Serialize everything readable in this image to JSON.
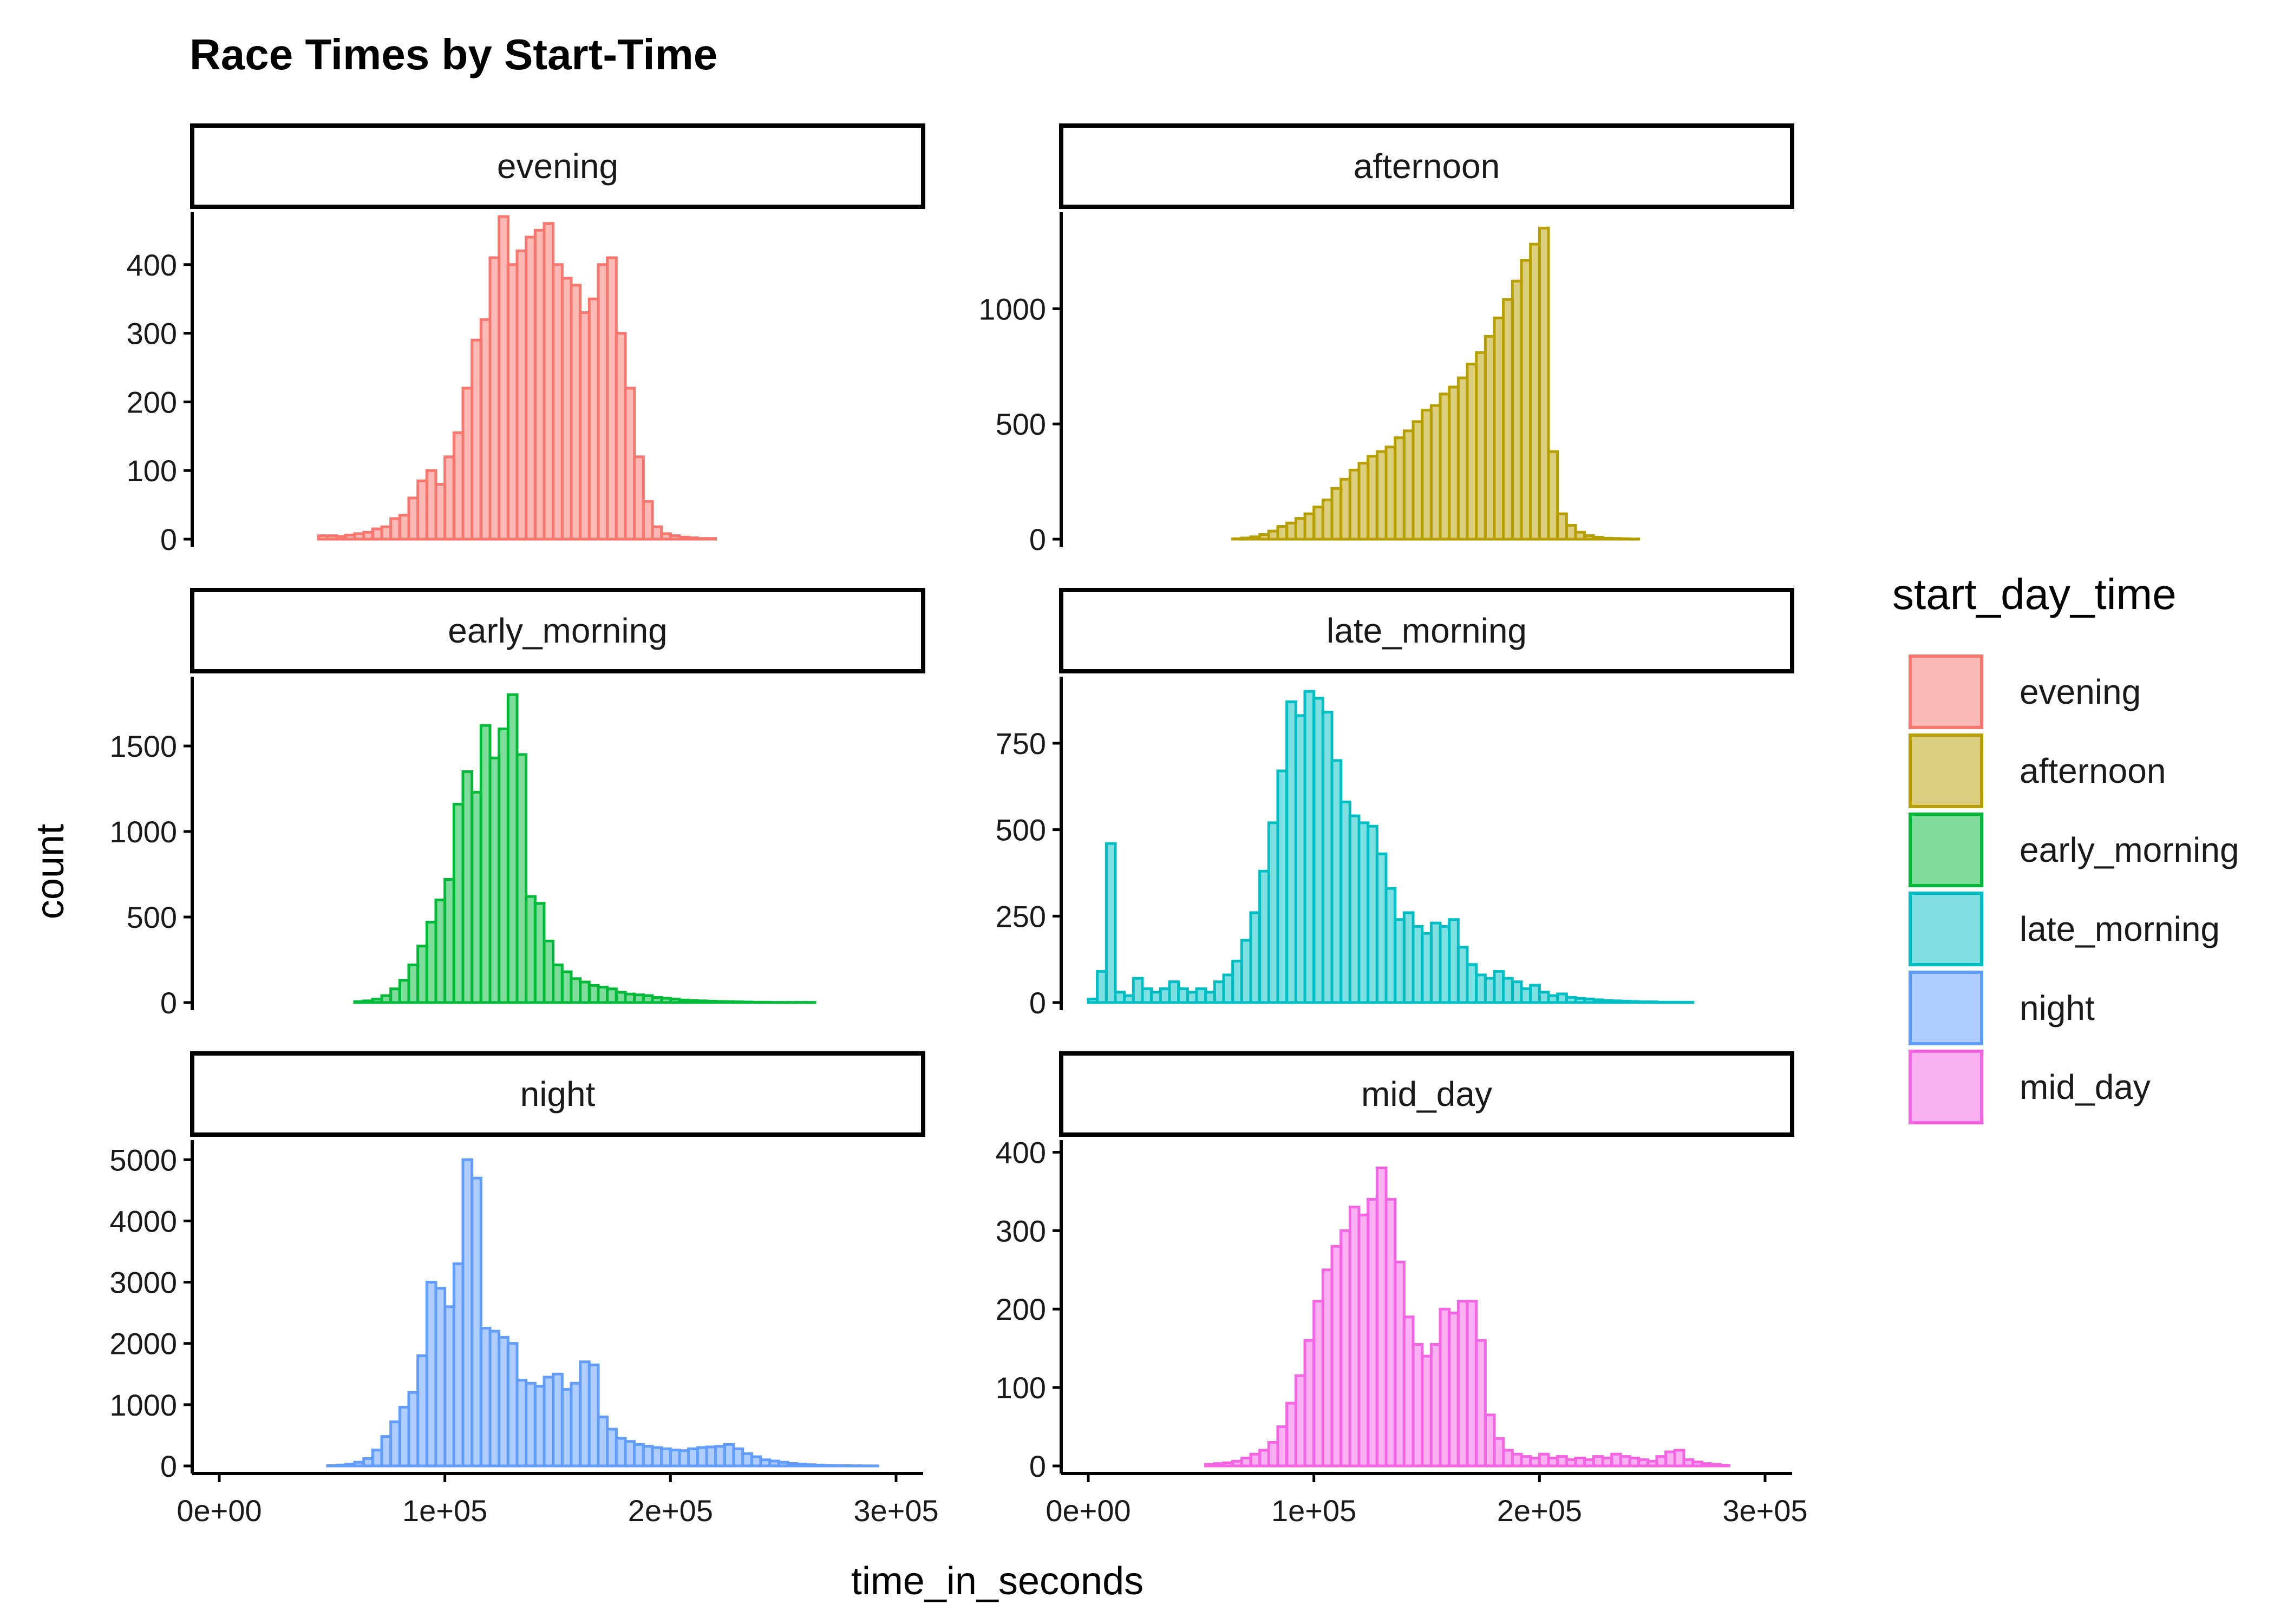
{
  "title": "Race Times by Start-Time",
  "x_axis_title": "time_in_seconds",
  "y_axis_title": "count",
  "legend": {
    "title": "start_day_time",
    "items": [
      {
        "label": "evening",
        "color": "#F8766D"
      },
      {
        "label": "afternoon",
        "color": "#B79F00"
      },
      {
        "label": "early_morning",
        "color": "#00BA38"
      },
      {
        "label": "late_morning",
        "color": "#00BFC4"
      },
      {
        "label": "night",
        "color": "#619CFF"
      },
      {
        "label": "mid_day",
        "color": "#F564E3"
      }
    ]
  },
  "chart_data": {
    "type": "bar",
    "subtype": "faceted-histogram",
    "title": "Race Times by Start-Time",
    "xlabel": "time_in_seconds",
    "ylabel": "count",
    "xlim": [
      -12000,
      312000
    ],
    "x_ticks": [
      0,
      100000,
      200000,
      300000
    ],
    "x_tick_labels": [
      "0e+00",
      "1e+05",
      "2e+05",
      "3e+05"
    ],
    "bin_width": 4000,
    "bin_start": 2000,
    "legend_position": "right",
    "grid": false,
    "facets": [
      {
        "name": "evening",
        "color": "#F8766D",
        "ylim": [
          0,
          470
        ],
        "y_ticks": [
          0,
          100,
          200,
          300,
          400
        ],
        "y_tick_labels": [
          "0",
          "100",
          "200",
          "300",
          "400"
        ],
        "values": [
          0,
          0,
          0,
          0,
          0,
          0,
          0,
          0,
          0,
          0,
          0,
          5,
          5,
          4,
          6,
          8,
          10,
          15,
          18,
          30,
          35,
          60,
          85,
          100,
          80,
          120,
          155,
          220,
          290,
          320,
          410,
          470,
          400,
          420,
          440,
          450,
          460,
          400,
          380,
          370,
          330,
          350,
          400,
          410,
          300,
          220,
          120,
          55,
          18,
          8,
          5,
          3,
          2,
          1,
          1,
          0,
          0,
          0,
          0,
          0,
          0,
          0,
          0,
          0,
          0,
          0,
          0,
          0,
          0,
          0,
          0,
          0,
          0,
          0,
          0
        ],
        "comment_unused": ""
      },
      {
        "name": "afternoon",
        "color": "#B79F00",
        "ylim": [
          0,
          1400
        ],
        "y_ticks": [
          0,
          500,
          1000
        ],
        "y_tick_labels": [
          "0",
          "500",
          "1000"
        ],
        "values": [
          0,
          0,
          0,
          0,
          0,
          0,
          0,
          0,
          0,
          0,
          0,
          0,
          0,
          0,
          0,
          0,
          2,
          5,
          10,
          20,
          35,
          55,
          70,
          90,
          110,
          140,
          170,
          220,
          260,
          300,
          330,
          360,
          380,
          400,
          440,
          470,
          510,
          560,
          580,
          630,
          660,
          700,
          760,
          810,
          880,
          960,
          1040,
          1120,
          1210,
          1280,
          1350,
          380,
          110,
          60,
          30,
          15,
          8,
          4,
          3,
          2,
          1,
          0,
          0,
          0,
          0,
          0,
          0,
          0,
          0,
          0,
          0,
          0,
          0,
          0,
          0
        ]
      },
      {
        "name": "early_morning",
        "color": "#00BA38",
        "ylim": [
          0,
          1880
        ],
        "y_ticks": [
          0,
          500,
          1000,
          1500
        ],
        "y_tick_labels": [
          "0",
          "500",
          "1000",
          "1500"
        ],
        "values": [
          0,
          0,
          0,
          0,
          0,
          0,
          0,
          0,
          0,
          0,
          0,
          0,
          0,
          0,
          0,
          5,
          10,
          20,
          40,
          80,
          130,
          220,
          330,
          470,
          600,
          720,
          1160,
          1350,
          1230,
          1620,
          1430,
          1600,
          1800,
          1450,
          620,
          580,
          360,
          220,
          180,
          140,
          120,
          100,
          90,
          80,
          60,
          50,
          45,
          40,
          30,
          25,
          20,
          15,
          12,
          10,
          8,
          6,
          5,
          4,
          3,
          2,
          2,
          1,
          1,
          1,
          1,
          1,
          0,
          0,
          0,
          0,
          0,
          0,
          0,
          0,
          0
        ]
      },
      {
        "name": "late_morning",
        "color": "#00BFC4",
        "ylim": [
          0,
          930
        ],
        "y_ticks": [
          0,
          250,
          500,
          750
        ],
        "y_tick_labels": [
          "0",
          "250",
          "500",
          "750"
        ],
        "values": [
          10,
          90,
          460,
          30,
          20,
          70,
          40,
          30,
          40,
          60,
          40,
          30,
          40,
          30,
          60,
          80,
          120,
          180,
          260,
          380,
          520,
          670,
          870,
          830,
          900,
          880,
          840,
          700,
          580,
          540,
          520,
          510,
          430,
          330,
          240,
          260,
          220,
          200,
          230,
          220,
          240,
          160,
          110,
          80,
          70,
          90,
          70,
          60,
          40,
          50,
          30,
          20,
          25,
          15,
          12,
          10,
          8,
          6,
          5,
          4,
          3,
          2,
          2,
          1,
          1,
          1,
          1,
          0,
          0,
          0,
          0,
          0,
          0,
          0,
          0
        ]
      },
      {
        "name": "night",
        "color": "#619CFF",
        "ylim": [
          0,
          5250
        ],
        "y_ticks": [
          0,
          1000,
          2000,
          3000,
          4000,
          5000
        ],
        "y_tick_labels": [
          "0",
          "1000",
          "2000",
          "3000",
          "4000",
          "5000"
        ],
        "values": [
          0,
          0,
          0,
          0,
          0,
          0,
          0,
          0,
          0,
          0,
          0,
          0,
          5,
          15,
          30,
          60,
          120,
          260,
          480,
          720,
          960,
          1200,
          1800,
          3000,
          2900,
          2600,
          3300,
          5000,
          4700,
          2250,
          2200,
          2100,
          2000,
          1400,
          1350,
          1300,
          1450,
          1500,
          1250,
          1350,
          1700,
          1650,
          800,
          600,
          450,
          400,
          350,
          320,
          300,
          280,
          260,
          250,
          280,
          300,
          310,
          320,
          350,
          280,
          200,
          150,
          100,
          80,
          60,
          40,
          30,
          20,
          15,
          10,
          8,
          5,
          3,
          2,
          1,
          0,
          0
        ]
      },
      {
        "name": "mid_day",
        "color": "#F564E3",
        "ylim": [
          0,
          410
        ],
        "y_ticks": [
          0,
          100,
          200,
          300,
          400
        ],
        "y_tick_labels": [
          "0",
          "100",
          "200",
          "300",
          "400"
        ],
        "values": [
          0,
          0,
          0,
          0,
          0,
          0,
          0,
          0,
          0,
          0,
          0,
          0,
          0,
          2,
          3,
          4,
          6,
          10,
          15,
          20,
          30,
          50,
          80,
          115,
          160,
          210,
          250,
          280,
          300,
          330,
          320,
          340,
          380,
          340,
          260,
          190,
          155,
          140,
          155,
          200,
          195,
          210,
          210,
          160,
          65,
          35,
          20,
          15,
          12,
          10,
          15,
          10,
          12,
          8,
          10,
          8,
          12,
          10,
          15,
          12,
          10,
          8,
          6,
          12,
          18,
          20,
          8,
          5,
          3,
          2,
          1,
          0,
          0,
          0,
          0
        ]
      }
    ]
  }
}
